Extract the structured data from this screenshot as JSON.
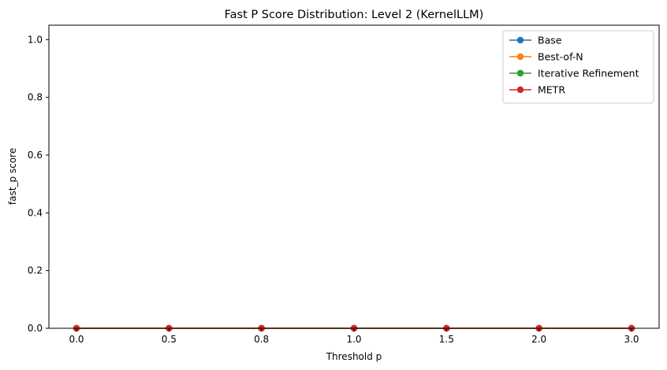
{
  "chart_data": {
    "type": "line",
    "title": "Fast P Score Distribution: Level 2 (KernelLLM)",
    "xlabel": "Threshold p",
    "ylabel": "fast_p score",
    "categories": [
      "0.0",
      "0.5",
      "0.8",
      "1.0",
      "1.5",
      "2.0",
      "3.0"
    ],
    "ylim": [
      0,
      1.05
    ],
    "yticks": [
      "0.0",
      "0.2",
      "0.4",
      "0.6",
      "0.8",
      "1.0"
    ],
    "grid": false,
    "legend_position": "top-right",
    "series": [
      {
        "name": "Base",
        "color": "#1f77b4",
        "values": [
          0,
          0,
          0,
          0,
          0,
          0,
          0
        ]
      },
      {
        "name": "Best-of-N",
        "color": "#ff7f0e",
        "values": [
          0,
          0,
          0,
          0,
          0,
          0,
          0
        ]
      },
      {
        "name": "Iterative Refinement",
        "color": "#2ca02c",
        "values": [
          0,
          0,
          0,
          0,
          0,
          0,
          0
        ]
      },
      {
        "name": "METR",
        "color": "#d62728",
        "values": [
          0,
          0,
          0,
          0,
          0,
          0,
          0
        ]
      }
    ]
  }
}
